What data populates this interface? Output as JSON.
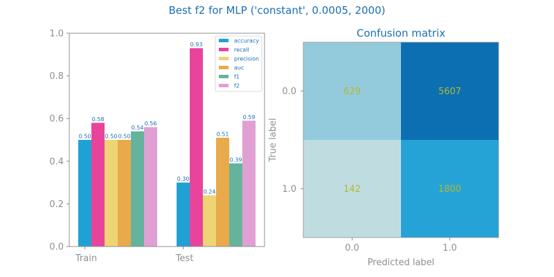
{
  "suptitle": "Best f2 for MLP ('constant', 0.0005, 2000)",
  "chart_data": [
    {
      "type": "bar",
      "categories": [
        "Train",
        "Test"
      ],
      "ylim": [
        0,
        1
      ],
      "yticks": [
        "0.0",
        "0.2",
        "0.4",
        "0.6",
        "0.8",
        "1.0"
      ],
      "legend_position": "top-right",
      "series": [
        {
          "name": "accuracy",
          "color": "#1fa1d5",
          "values": [
            0.5,
            0.3
          ],
          "labels": [
            "0.50",
            "0.30"
          ]
        },
        {
          "name": "recall",
          "color": "#e8449b",
          "values": [
            0.58,
            0.93
          ],
          "labels": [
            "0.58",
            "0.93"
          ]
        },
        {
          "name": "precision",
          "color": "#efd473",
          "values": [
            0.5,
            0.24
          ],
          "labels": [
            "0.50",
            "0.24"
          ]
        },
        {
          "name": "auc",
          "color": "#e9aa4b",
          "values": [
            0.5,
            0.51
          ],
          "labels": [
            "0.50",
            "0.51"
          ]
        },
        {
          "name": "f1",
          "color": "#65b39c",
          "values": [
            0.54,
            0.39
          ],
          "labels": [
            "0.54",
            "0.39"
          ]
        },
        {
          "name": "f2",
          "color": "#e0a0d4",
          "values": [
            0.56,
            0.59
          ],
          "labels": [
            "0.56",
            "0.59"
          ]
        }
      ]
    },
    {
      "type": "heatmap",
      "title": "Confusion matrix",
      "xlabel": "Predicted label",
      "ylabel": "True label",
      "xticks": [
        "0.0",
        "1.0"
      ],
      "yticks": [
        "0.0",
        "1.0"
      ],
      "matrix": [
        [
          629,
          5607
        ],
        [
          142,
          1800
        ]
      ],
      "labels": [
        [
          "629",
          "5607"
        ],
        [
          "142",
          "1800"
        ]
      ],
      "cell_colors": [
        [
          "#93cbdd",
          "#0c6fb2"
        ],
        [
          "#bfdde1",
          "#26a3d6"
        ]
      ]
    }
  ]
}
